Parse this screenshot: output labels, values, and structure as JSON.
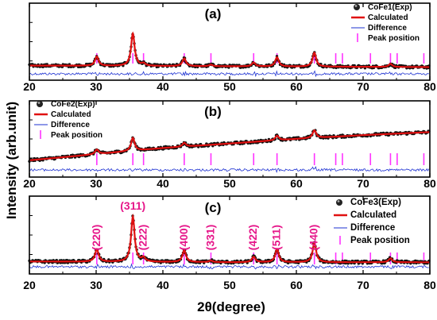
{
  "ylabel": "Intensity (arb.unit)",
  "xlabel": "2θ(degree)",
  "colors": {
    "exp": "#111111",
    "calc": "#e01010",
    "diff": "#1e32d2",
    "peak": "#ff33ff",
    "hkl": "#e6178a"
  },
  "chart_data": [
    {
      "type": "line",
      "panel_label": "(a)",
      "xlim": [
        20,
        80
      ],
      "x_ticks": [
        20,
        30,
        40,
        50,
        60,
        70,
        80
      ],
      "legend": {
        "position": "top-right",
        "entries": [
          "CoFe1(Exp)",
          "Calculated",
          "Difference",
          "Peak position"
        ]
      },
      "series": [
        {
          "name": "CoFe1(Exp)",
          "style": "scatter"
        },
        {
          "name": "Calculated",
          "style": "line"
        },
        {
          "name": "Difference",
          "style": "line"
        },
        {
          "name": "Peak position",
          "style": "ticks"
        }
      ],
      "background": [
        [
          20,
          0.19
        ],
        [
          50,
          0.18
        ],
        [
          80,
          0.17
        ]
      ],
      "peaks": [
        {
          "x": 30.1,
          "height": 0.12
        },
        {
          "x": 35.5,
          "height": 0.42
        },
        {
          "x": 37.1,
          "height": 0.03
        },
        {
          "x": 43.2,
          "height": 0.1
        },
        {
          "x": 47.2,
          "height": 0.02
        },
        {
          "x": 53.6,
          "height": 0.05
        },
        {
          "x": 57.1,
          "height": 0.12
        },
        {
          "x": 62.7,
          "height": 0.18
        },
        {
          "x": 74.1,
          "height": 0.04
        }
      ],
      "peak_positions": [
        30.1,
        35.5,
        37.1,
        43.2,
        47.2,
        53.6,
        57.1,
        62.7,
        65.9,
        66.9,
        71.1,
        74.1,
        75.1,
        79.1
      ],
      "hkl_labels": []
    },
    {
      "type": "line",
      "panel_label": "(b)",
      "xlim": [
        20,
        80
      ],
      "x_ticks": [
        20,
        30,
        40,
        50,
        60,
        70,
        80
      ],
      "legend": {
        "position": "top-left",
        "entries": [
          "CoFe2(Exp)",
          "Calculated",
          "Difference",
          "Peak position"
        ]
      },
      "series": [
        {
          "name": "CoFe2(Exp)",
          "style": "scatter"
        },
        {
          "name": "Calculated",
          "style": "line"
        },
        {
          "name": "Difference",
          "style": "line"
        },
        {
          "name": "Peak position",
          "style": "ticks"
        }
      ],
      "background": [
        [
          20,
          0.22
        ],
        [
          30,
          0.3
        ],
        [
          40,
          0.38
        ],
        [
          50,
          0.44
        ],
        [
          60,
          0.5
        ],
        [
          70,
          0.55
        ],
        [
          80,
          0.59
        ]
      ],
      "peaks": [
        {
          "x": 30.1,
          "height": 0.06
        },
        {
          "x": 35.5,
          "height": 0.17
        },
        {
          "x": 43.2,
          "height": 0.05
        },
        {
          "x": 57.1,
          "height": 0.06
        },
        {
          "x": 62.7,
          "height": 0.1
        }
      ],
      "peak_positions": [
        30.1,
        35.5,
        37.1,
        43.2,
        47.2,
        53.6,
        57.1,
        62.7,
        65.9,
        66.9,
        71.1,
        74.1,
        75.1,
        79.1
      ],
      "hkl_labels": []
    },
    {
      "type": "line",
      "panel_label": "(c)",
      "xlim": [
        20,
        80
      ],
      "x_ticks": [
        20,
        30,
        40,
        50,
        60,
        70,
        80
      ],
      "legend": {
        "position": "top-right",
        "entries": [
          "CoFe3(Exp)",
          "Calculated",
          "Difference",
          "Peak position"
        ]
      },
      "series": [
        {
          "name": "CoFe3(Exp)",
          "style": "scatter"
        },
        {
          "name": "Calculated",
          "style": "line"
        },
        {
          "name": "Difference",
          "style": "line"
        },
        {
          "name": "Peak position",
          "style": "ticks"
        }
      ],
      "background": [
        [
          20,
          0.16
        ],
        [
          50,
          0.15
        ],
        [
          80,
          0.15
        ]
      ],
      "peaks": [
        {
          "x": 30.1,
          "height": 0.16
        },
        {
          "x": 35.5,
          "height": 0.58
        },
        {
          "x": 37.1,
          "height": 0.05
        },
        {
          "x": 43.2,
          "height": 0.15
        },
        {
          "x": 47.2,
          "height": 0.02
        },
        {
          "x": 53.6,
          "height": 0.07
        },
        {
          "x": 57.1,
          "height": 0.17
        },
        {
          "x": 62.7,
          "height": 0.25
        },
        {
          "x": 74.1,
          "height": 0.05
        }
      ],
      "peak_positions": [
        30.1,
        35.5,
        37.1,
        43.2,
        47.2,
        53.6,
        57.1,
        62.7,
        65.9,
        66.9,
        71.1,
        74.1,
        75.1,
        79.1
      ],
      "hkl_labels": [
        {
          "label": "(220)",
          "x": 30.1
        },
        {
          "label": "(311)",
          "x": 35.5
        },
        {
          "label": "(222)",
          "x": 37.1
        },
        {
          "label": "(400)",
          "x": 43.2
        },
        {
          "label": "(331)",
          "x": 47.2
        },
        {
          "label": "(422)",
          "x": 53.6
        },
        {
          "label": "(511)",
          "x": 57.1
        },
        {
          "label": "(440)",
          "x": 62.7
        }
      ]
    }
  ]
}
